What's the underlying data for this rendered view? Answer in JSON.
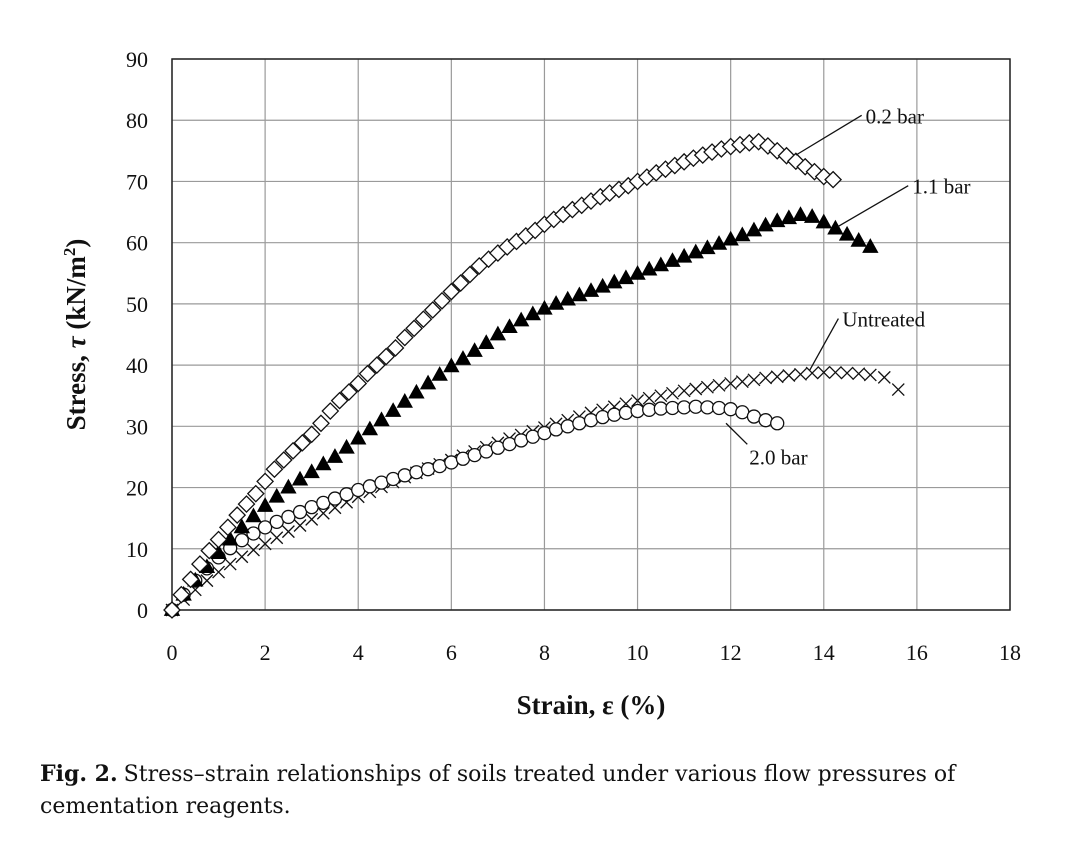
{
  "caption": {
    "label": "Fig. 2.",
    "text": "Stress–strain relationships of soils treated under various flow pressures of cementation reagents."
  },
  "chart_data": {
    "type": "scatter",
    "xlabel": "Strain, ε (%)",
    "ylabel_prefix": "Stress, ",
    "ylabel_symbol": "τ",
    "ylabel_unit": " (kN/m",
    "ylabel_sup": "2",
    "ylabel_end": ")",
    "xlim": [
      0,
      18
    ],
    "ylim": [
      0,
      90
    ],
    "xticks": [
      0,
      2,
      4,
      6,
      8,
      10,
      12,
      14,
      16,
      18
    ],
    "yticks": [
      0,
      10,
      20,
      30,
      40,
      50,
      60,
      70,
      80,
      90
    ],
    "grid": true,
    "series": [
      {
        "name": "0.2 bar",
        "marker": "diamond-open",
        "x": [
          0,
          0.2,
          0.4,
          0.6,
          0.8,
          1.0,
          1.2,
          1.4,
          1.6,
          1.8,
          2.0,
          2.2,
          2.4,
          2.6,
          2.8,
          3.0,
          3.2,
          3.4,
          3.6,
          3.8,
          4.0,
          4.2,
          4.4,
          4.6,
          4.8,
          5.0,
          5.2,
          5.4,
          5.6,
          5.8,
          6.0,
          6.2,
          6.4,
          6.6,
          6.8,
          7.0,
          7.2,
          7.4,
          7.6,
          7.8,
          8.0,
          8.2,
          8.4,
          8.6,
          8.8,
          9.0,
          9.2,
          9.4,
          9.6,
          9.8,
          10.0,
          10.2,
          10.4,
          10.6,
          10.8,
          11.0,
          11.2,
          11.4,
          11.6,
          11.8,
          12.0,
          12.2,
          12.4,
          12.6,
          12.8,
          13.0,
          13.2,
          13.4,
          13.6,
          13.8,
          14.0,
          14.2
        ],
        "y": [
          0,
          2.5,
          5,
          7.5,
          9.7,
          11.5,
          13.5,
          15.5,
          17.3,
          19,
          21,
          23,
          24.5,
          26,
          27.3,
          28.7,
          30.5,
          32.5,
          34.2,
          35.6,
          37,
          38.6,
          40,
          41.4,
          42.8,
          44.5,
          46,
          47.5,
          49,
          50.5,
          52,
          53.4,
          54.8,
          56.2,
          57.3,
          58.3,
          59.3,
          60.2,
          61.1,
          62,
          63,
          63.8,
          64.6,
          65.4,
          66.1,
          66.8,
          67.5,
          68.1,
          68.7,
          69.3,
          70,
          70.7,
          71.4,
          72,
          72.6,
          73.2,
          73.8,
          74.3,
          74.8,
          75.3,
          75.7,
          76,
          76.3,
          76.5,
          75.8,
          75,
          74.2,
          73.3,
          72.4,
          71.6,
          70.8,
          70.3
        ],
        "label_color": "#111111"
      },
      {
        "name": "1.1 bar",
        "marker": "triangle-filled",
        "x": [
          0,
          0.25,
          0.5,
          0.75,
          1.0,
          1.25,
          1.5,
          1.75,
          2.0,
          2.25,
          2.5,
          2.75,
          3.0,
          3.25,
          3.5,
          3.75,
          4.0,
          4.25,
          4.5,
          4.75,
          5.0,
          5.25,
          5.5,
          5.75,
          6.0,
          6.25,
          6.5,
          6.75,
          7.0,
          7.25,
          7.5,
          7.75,
          8.0,
          8.25,
          8.5,
          8.75,
          9.0,
          9.25,
          9.5,
          9.75,
          10.0,
          10.25,
          10.5,
          10.75,
          11.0,
          11.25,
          11.5,
          11.75,
          12.0,
          12.25,
          12.5,
          12.75,
          13.0,
          13.25,
          13.5,
          13.75,
          14.0,
          14.25,
          14.5,
          14.75,
          15.0
        ],
        "y": [
          0,
          2.5,
          4.8,
          7,
          9.3,
          11.5,
          13.5,
          15.3,
          17,
          18.5,
          20,
          21.3,
          22.5,
          23.8,
          25,
          26.5,
          28,
          29.5,
          31,
          32.5,
          34,
          35.5,
          37,
          38.4,
          39.8,
          41,
          42.3,
          43.6,
          45,
          46.2,
          47.3,
          48.3,
          49.2,
          50,
          50.7,
          51.4,
          52.1,
          52.8,
          53.5,
          54.2,
          54.9,
          55.6,
          56.3,
          57,
          57.7,
          58.4,
          59.1,
          59.8,
          60.5,
          61.2,
          62,
          62.8,
          63.5,
          64,
          64.5,
          64.2,
          63.3,
          62.3,
          61.3,
          60.3,
          59.3
        ],
        "label_color": "#111111"
      },
      {
        "name": "Untreated",
        "marker": "x",
        "x": [
          0,
          0.25,
          0.5,
          0.75,
          1.0,
          1.25,
          1.5,
          1.75,
          2.0,
          2.25,
          2.5,
          2.75,
          3.0,
          3.25,
          3.5,
          3.75,
          4.0,
          4.25,
          4.5,
          4.75,
          5.0,
          5.25,
          5.5,
          5.75,
          6.0,
          6.25,
          6.5,
          6.75,
          7.0,
          7.25,
          7.5,
          7.75,
          8.0,
          8.25,
          8.5,
          8.75,
          9.0,
          9.25,
          9.5,
          9.75,
          10.0,
          10.25,
          10.5,
          10.75,
          11.0,
          11.25,
          11.5,
          11.75,
          12.0,
          12.25,
          12.5,
          12.75,
          13.0,
          13.25,
          13.5,
          13.75,
          14.0,
          14.25,
          14.5,
          14.75,
          15.0,
          15.3,
          15.6
        ],
        "y": [
          0,
          1.7,
          3.3,
          4.8,
          6.2,
          7.5,
          8.7,
          9.8,
          10.8,
          11.8,
          12.8,
          13.8,
          14.8,
          15.8,
          16.7,
          17.6,
          18.5,
          19.3,
          20.1,
          20.9,
          21.7,
          22.4,
          23.1,
          23.8,
          24.5,
          25.2,
          25.9,
          26.6,
          27.3,
          28,
          28.6,
          29.2,
          29.8,
          30.4,
          31,
          31.6,
          32.2,
          32.7,
          33.2,
          33.7,
          34.2,
          34.6,
          35,
          35.4,
          35.8,
          36.1,
          36.4,
          36.7,
          37,
          37.3,
          37.6,
          37.9,
          38.1,
          38.3,
          38.5,
          38.7,
          38.8,
          38.8,
          38.7,
          38.6,
          38.4,
          38,
          36
        ]
      },
      {
        "name": "2.0 bar",
        "marker": "circle-open",
        "x": [
          0,
          0.25,
          0.5,
          0.75,
          1.0,
          1.25,
          1.5,
          1.75,
          2.0,
          2.25,
          2.5,
          2.75,
          3.0,
          3.25,
          3.5,
          3.75,
          4.0,
          4.25,
          4.5,
          4.75,
          5.0,
          5.25,
          5.5,
          5.75,
          6.0,
          6.25,
          6.5,
          6.75,
          7.0,
          7.25,
          7.5,
          7.75,
          8.0,
          8.25,
          8.5,
          8.75,
          9.0,
          9.25,
          9.5,
          9.75,
          10.0,
          10.25,
          10.5,
          10.75,
          11.0,
          11.25,
          11.5,
          11.75,
          12.0,
          12.25,
          12.5,
          12.75,
          13.0
        ],
        "y": [
          0,
          2.5,
          4.8,
          6.8,
          8.6,
          10.1,
          11.4,
          12.5,
          13.5,
          14.4,
          15.2,
          16,
          16.8,
          17.5,
          18.2,
          18.9,
          19.6,
          20.2,
          20.8,
          21.4,
          22,
          22.5,
          23,
          23.5,
          24.1,
          24.7,
          25.3,
          25.9,
          26.5,
          27.1,
          27.7,
          28.3,
          28.9,
          29.5,
          30,
          30.5,
          31,
          31.5,
          31.9,
          32.2,
          32.5,
          32.7,
          32.9,
          33,
          33.1,
          33.2,
          33.1,
          33,
          32.8,
          32.3,
          31.6,
          31,
          30.5
        ]
      }
    ],
    "annotations": [
      {
        "text": "0.2 bar",
        "x": 14.9,
        "y": 79.5,
        "arrow_to": [
          13.4,
          74.3
        ]
      },
      {
        "text": "1.1 bar",
        "x": 15.9,
        "y": 68.0,
        "arrow_to": [
          14.3,
          62.6
        ]
      },
      {
        "text": "Untreated",
        "x": 14.4,
        "y": 46.3,
        "arrow_to": [
          13.7,
          39.2
        ]
      },
      {
        "text": "2.0 bar",
        "x": 12.4,
        "y": 23.8,
        "arrow_to": [
          11.9,
          30.5
        ]
      }
    ]
  }
}
